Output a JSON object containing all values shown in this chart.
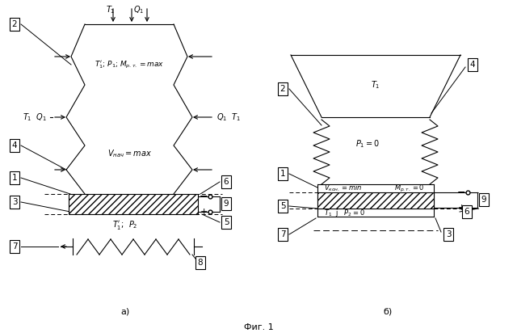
{
  "bg_color": "#ffffff",
  "fig_width": 6.4,
  "fig_height": 4.12,
  "title": "Фиг. 1",
  "label_a": "а)",
  "label_b": "б)"
}
